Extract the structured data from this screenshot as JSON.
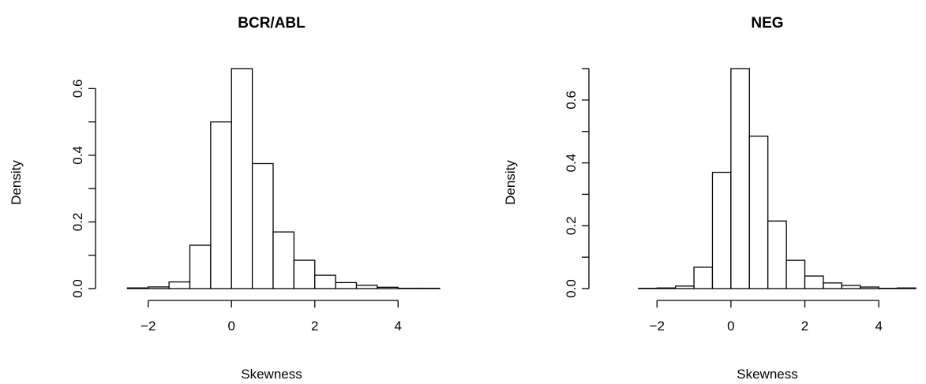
{
  "chart_data": [
    {
      "type": "bar",
      "title": "BCR/ABL",
      "xlabel": "Skewness",
      "ylabel": "Density",
      "xlim": [
        -3,
        5
      ],
      "ylim": [
        0,
        0.66
      ],
      "x_ticks": [
        "−2",
        "0",
        "2",
        "4"
      ],
      "y_ticks": [
        "0.0",
        "0.2",
        "0.4",
        "0.6"
      ],
      "bin_edges": [
        -3.0,
        -2.5,
        -2.0,
        -1.5,
        -1.0,
        -0.5,
        0.0,
        0.5,
        1.0,
        1.5,
        2.0,
        2.5,
        3.0,
        3.5,
        4.0,
        4.5,
        5.0
      ],
      "values": [
        0.0,
        0.002,
        0.005,
        0.02,
        0.13,
        0.5,
        0.66,
        0.375,
        0.17,
        0.085,
        0.04,
        0.018,
        0.01,
        0.004,
        0.001,
        0.001
      ]
    },
    {
      "type": "bar",
      "title": "NEG",
      "xlabel": "Skewness",
      "ylabel": "Density",
      "xlim": [
        -3.5,
        5
      ],
      "ylim": [
        0,
        0.7
      ],
      "x_ticks": [
        "−2",
        "0",
        "2",
        "4"
      ],
      "y_ticks": [
        "0.0",
        "0.2",
        "0.4",
        "0.6"
      ],
      "bin_edges": [
        -3.5,
        -3.0,
        -2.5,
        -2.0,
        -1.5,
        -1.0,
        -0.5,
        0.0,
        0.5,
        1.0,
        1.5,
        2.0,
        2.5,
        3.0,
        3.5,
        4.0,
        4.5,
        5.0
      ],
      "values": [
        0.0,
        0.0,
        0.001,
        0.002,
        0.008,
        0.068,
        0.37,
        0.7,
        0.485,
        0.215,
        0.09,
        0.04,
        0.018,
        0.01,
        0.005,
        0.001,
        0.002
      ]
    }
  ]
}
